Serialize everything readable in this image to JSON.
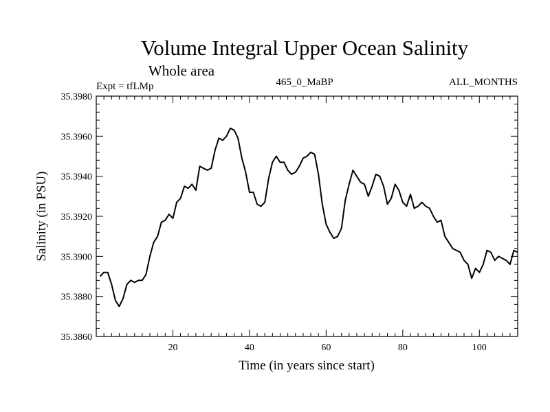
{
  "chart_data": {
    "type": "line",
    "title": "Volume Integral Upper Ocean Salinity",
    "subtitle": "Whole area",
    "left_label": "Expt = tfLMp",
    "center_label": "465_0_MaBP",
    "right_label": "ALL_MONTHS",
    "xlabel": "Time (in years since start)",
    "ylabel": "Salinity (in PSU)",
    "xlim": [
      0,
      110
    ],
    "ylim": [
      35.386,
      35.398
    ],
    "x_ticks": [
      20,
      40,
      60,
      80,
      100
    ],
    "x_tick_labels": [
      "20",
      "40",
      "60",
      "80",
      "100"
    ],
    "y_ticks": [
      35.386,
      35.388,
      35.39,
      35.392,
      35.394,
      35.396,
      35.398
    ],
    "y_tick_labels": [
      "35.3860",
      "35.3880",
      "35.3900",
      "35.3920",
      "35.3940",
      "35.3960",
      "35.3980"
    ],
    "grid": false,
    "series": [
      {
        "name": "salinity",
        "color": "#000000",
        "x": [
          1,
          2,
          3,
          4,
          5,
          6,
          7,
          8,
          9,
          10,
          11,
          12,
          13,
          14,
          15,
          16,
          17,
          18,
          19,
          20,
          21,
          22,
          23,
          24,
          25,
          26,
          27,
          28,
          29,
          30,
          31,
          32,
          33,
          34,
          35,
          36,
          37,
          38,
          39,
          40,
          41,
          42,
          43,
          44,
          45,
          46,
          47,
          48,
          49,
          50,
          51,
          52,
          53,
          54,
          55,
          56,
          57,
          58,
          59,
          60,
          61,
          62,
          63,
          64,
          65,
          66,
          67,
          68,
          69,
          70,
          71,
          72,
          73,
          74,
          75,
          76,
          77,
          78,
          79,
          80,
          81,
          82,
          83,
          84,
          85,
          86,
          87,
          88,
          89,
          90,
          91,
          92,
          93,
          94,
          95,
          96,
          97,
          98,
          99,
          100,
          101,
          102,
          103,
          104,
          105,
          106,
          107,
          108,
          109,
          110
        ],
        "values": [
          35.389,
          35.3892,
          35.3892,
          35.3886,
          35.3878,
          35.3875,
          35.3879,
          35.3886,
          35.3888,
          35.3887,
          35.3888,
          35.3888,
          35.3891,
          35.39,
          35.3907,
          35.391,
          35.3917,
          35.3918,
          35.3921,
          35.3919,
          35.3927,
          35.3929,
          35.3935,
          35.3934,
          35.3936,
          35.3933,
          35.3945,
          35.3944,
          35.3943,
          35.3944,
          35.3953,
          35.3959,
          35.3958,
          35.396,
          35.3964,
          35.3963,
          35.3959,
          35.3949,
          35.3942,
          35.3932,
          35.3932,
          35.3926,
          35.3925,
          35.3927,
          35.3939,
          35.3947,
          35.395,
          35.3947,
          35.3947,
          35.3943,
          35.3941,
          35.3942,
          35.3945,
          35.3949,
          35.395,
          35.3952,
          35.3951,
          35.3941,
          35.3926,
          35.3916,
          35.3912,
          35.3909,
          35.391,
          35.3914,
          35.3928,
          35.3936,
          35.3943,
          35.394,
          35.3937,
          35.3936,
          35.393,
          35.3935,
          35.3941,
          35.394,
          35.3935,
          35.3926,
          35.3929,
          35.3936,
          35.3933,
          35.3927,
          35.3925,
          35.3931,
          35.3924,
          35.3925,
          35.3927,
          35.3925,
          35.3924,
          35.392,
          35.3917,
          35.3918,
          35.391,
          35.3907,
          35.3904,
          35.3903,
          35.3902,
          35.3898,
          35.3896,
          35.3889,
          35.3894,
          35.3892,
          35.3896,
          35.3903,
          35.3902,
          35.3898,
          35.39,
          35.3899,
          35.3898,
          35.3896,
          35.3903,
          35.3902
        ]
      }
    ]
  }
}
